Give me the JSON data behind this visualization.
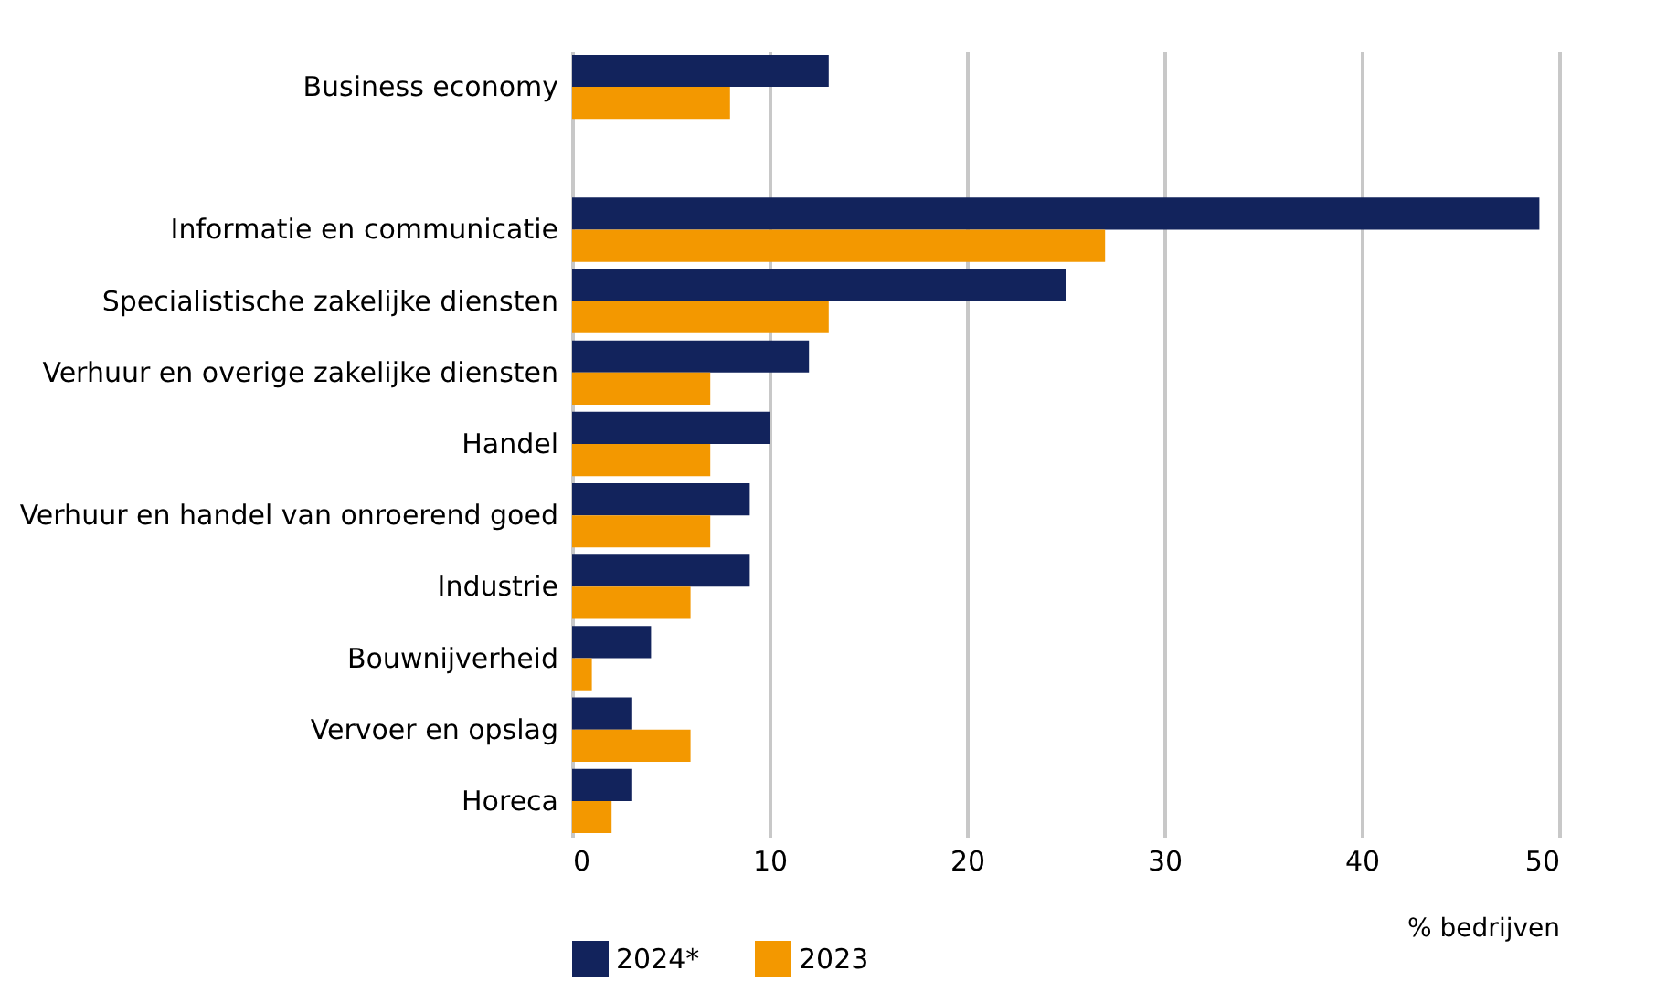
{
  "chart_data": {
    "type": "bar",
    "orientation": "horizontal",
    "xlabel": "% bedrijven",
    "categories": [
      "Business economy",
      null,
      "Informatie en communicatie",
      "Specialistische zakelijke diensten",
      "Verhuur en overige zakelijke diensten",
      "Handel",
      "Verhuur en handel van onroerend goed",
      "Industrie",
      "Bouwnijverheid",
      "Vervoer en opslag",
      "Horeca"
    ],
    "series": [
      {
        "name": "2024*",
        "color": "#12235c",
        "values": [
          13,
          null,
          49,
          25,
          12,
          10,
          9,
          9,
          4,
          3,
          3
        ]
      },
      {
        "name": "2023",
        "color": "#f39800",
        "values": [
          8,
          null,
          27,
          13,
          7,
          7,
          7,
          6,
          1,
          6,
          2
        ]
      }
    ],
    "xlim": [
      0,
      50
    ],
    "xticks": [
      0,
      10,
      20,
      30,
      40,
      50
    ],
    "grid": "x",
    "legend": "bottom"
  }
}
